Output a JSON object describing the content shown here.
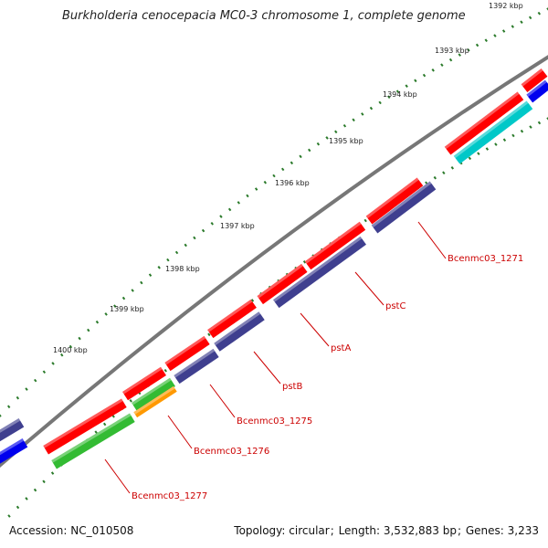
{
  "title": "Burkholderia cenocepacia MC0-3 chromosome 1, complete genome",
  "accession": {
    "label": "Accession:",
    "value": "NC_010508"
  },
  "topology": {
    "label": "Topology:",
    "value": "circular",
    "length_label": "Length:",
    "length_value": "3,532,883 bp",
    "genes_label": "Genes:",
    "genes_value": "3,233"
  },
  "ticks": [
    "1392 kbp",
    "1393 kbp",
    "1394 kbp",
    "1395 kbp",
    "1396 kbp",
    "1397 kbp",
    "1398 kbp",
    "1399 kbp",
    "1400 kbp"
  ],
  "gene_labels": [
    "Bcenmc03_1271",
    "pstC",
    "pstA",
    "pstB",
    "Bcenmc03_1275",
    "Bcenmc03_1276",
    "Bcenmc03_1277"
  ],
  "colors": {
    "forward_gene": "#ff0000",
    "reverse_gene": "#3f3f8f",
    "green_gene": "#33bb33",
    "orange_gene": "#ff9900",
    "cyan_gene": "#00c8c8",
    "blue_gene": "#0000ee",
    "backbone": "#777777",
    "tick": "#2a7a2a",
    "label": "#cc0000"
  }
}
